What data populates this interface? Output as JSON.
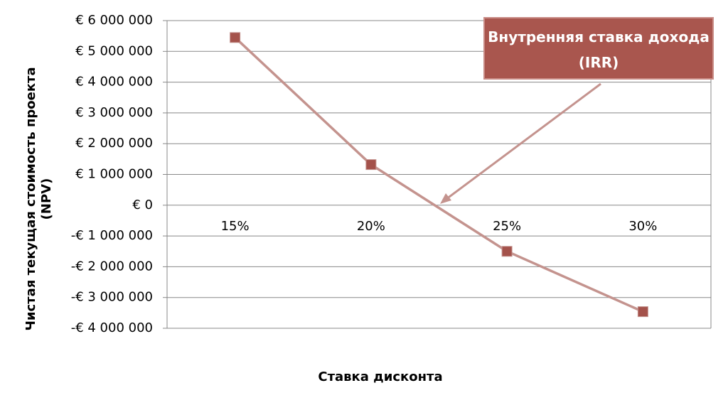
{
  "chart_data": {
    "type": "line",
    "y_label": "Чистая текущая стоимость проекта (NPV)",
    "x_label": "Ставка дисконта",
    "categories": [
      "15%",
      "20%",
      "25%",
      "30%"
    ],
    "series": [
      {
        "color": "#c4938e",
        "marker_color": "#a4524b",
        "values": [
          5450000,
          1320000,
          -1500000,
          -3460000
        ]
      }
    ],
    "ylim": [
      -4000000,
      6000000
    ],
    "yticks": [
      {
        "value": -4000000,
        "label": "-€ 4 000 000"
      },
      {
        "value": -3000000,
        "label": "-€ 3 000 000"
      },
      {
        "value": -2000000,
        "label": "-€ 2 000 000"
      },
      {
        "value": -1000000,
        "label": "-€ 1 000 000"
      },
      {
        "value": 0,
        "label": "€ 0"
      },
      {
        "value": 1000000,
        "label": "€ 1 000 000"
      },
      {
        "value": 2000000,
        "label": "€ 2 000 000"
      },
      {
        "value": 3000000,
        "label": "€ 3 000 000"
      },
      {
        "value": 4000000,
        "label": "€ 4 000 000"
      },
      {
        "value": 5000000,
        "label": "€ 5 000 000"
      },
      {
        "value": 6000000,
        "label": "€ 6 000 000"
      }
    ],
    "grid": true,
    "annotations": [
      {
        "text": "Внутренняя ставка дохода (IRR)"
      }
    ]
  }
}
